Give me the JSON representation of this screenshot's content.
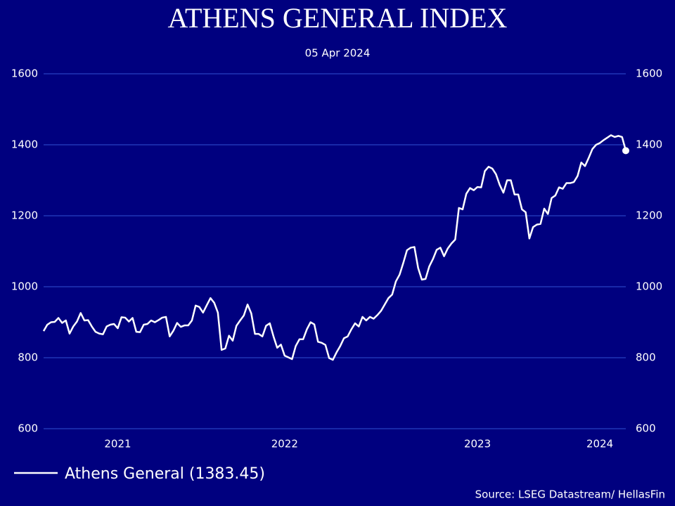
{
  "chart_data": {
    "type": "line",
    "title": "ATHENS GENERAL INDEX",
    "subtitle": "05 Apr 2024",
    "source": "Source: LSEG Datastream/ HellasFin",
    "x": [
      0,
      1,
      2,
      3,
      4,
      5,
      6,
      7,
      8,
      9,
      10,
      11,
      12,
      13,
      14,
      15,
      16,
      17,
      18,
      19,
      20,
      21,
      22,
      23,
      24,
      25,
      26,
      27,
      28,
      29,
      30,
      31,
      32,
      33,
      34,
      35,
      36,
      37,
      38,
      39,
      40,
      41,
      42,
      43,
      44,
      45,
      46,
      47,
      48,
      49,
      50,
      51,
      52,
      53,
      54,
      55,
      56,
      57,
      58,
      59,
      60,
      61,
      62,
      63,
      64,
      65,
      66,
      67,
      68,
      69,
      70,
      71,
      72,
      73,
      74,
      75,
      76,
      77,
      78,
      79,
      80,
      81,
      82,
      83,
      84,
      85,
      86,
      87,
      88,
      89,
      90,
      91,
      92,
      93,
      94,
      95,
      96,
      97,
      98,
      99,
      100,
      101,
      102,
      103,
      104,
      105,
      106,
      107,
      108,
      109,
      110,
      111,
      112,
      113,
      114,
      115,
      116,
      117,
      118,
      119,
      120,
      121,
      122,
      123,
      124,
      125,
      126,
      127,
      128,
      129,
      130,
      131,
      132,
      133,
      134,
      135,
      136,
      137,
      138,
      139,
      140,
      141,
      142,
      143,
      144,
      145,
      146,
      147,
      148,
      149,
      150,
      151,
      152,
      153,
      154,
      155,
      156,
      157
    ],
    "xlim": [
      0,
      157
    ],
    "xticks": [
      {
        "value": 20,
        "label": "2021"
      },
      {
        "value": 65,
        "label": "2022"
      },
      {
        "value": 117,
        "label": "2023"
      },
      {
        "value": 150,
        "label": "2024"
      }
    ],
    "series": [
      {
        "name": "Athens General (1383.45)",
        "color": "#ffffff",
        "values": [
          875,
          893,
          900,
          901,
          912,
          898,
          905,
          868,
          888,
          902,
          926,
          905,
          906,
          888,
          873,
          868,
          866,
          888,
          893,
          895,
          883,
          914,
          913,
          902,
          912,
          873,
          872,
          893,
          895,
          905,
          900,
          906,
          913,
          915,
          860,
          876,
          898,
          887,
          891,
          891,
          905,
          947,
          943,
          927,
          948,
          968,
          955,
          927,
          822,
          826,
          862,
          848,
          890,
          905,
          919,
          950,
          925,
          867,
          867,
          860,
          890,
          897,
          860,
          828,
          837,
          806,
          801,
          796,
          833,
          852,
          852,
          880,
          900,
          894,
          845,
          842,
          836,
          799,
          794,
          815,
          833,
          855,
          860,
          880,
          897,
          888,
          915,
          905,
          915,
          910,
          920,
          932,
          950,
          968,
          978,
          1015,
          1034,
          1067,
          1103,
          1110,
          1112,
          1053,
          1020,
          1022,
          1057,
          1078,
          1104,
          1110,
          1086,
          1108,
          1122,
          1133,
          1222,
          1218,
          1262,
          1278,
          1272,
          1281,
          1280,
          1326,
          1338,
          1333,
          1317,
          1287,
          1265,
          1300,
          1300,
          1260,
          1260,
          1218,
          1210,
          1136,
          1168,
          1175,
          1177,
          1220,
          1205,
          1250,
          1257,
          1280,
          1276,
          1292,
          1292,
          1295,
          1312,
          1350,
          1340,
          1363,
          1388,
          1400,
          1405,
          1413,
          1420,
          1427,
          1422,
          1425,
          1422,
          1383.45
        ]
      }
    ],
    "ylim": [
      600,
      1600
    ],
    "yticks": [
      600,
      800,
      1000,
      1200,
      1400,
      1600
    ],
    "grid": true
  }
}
